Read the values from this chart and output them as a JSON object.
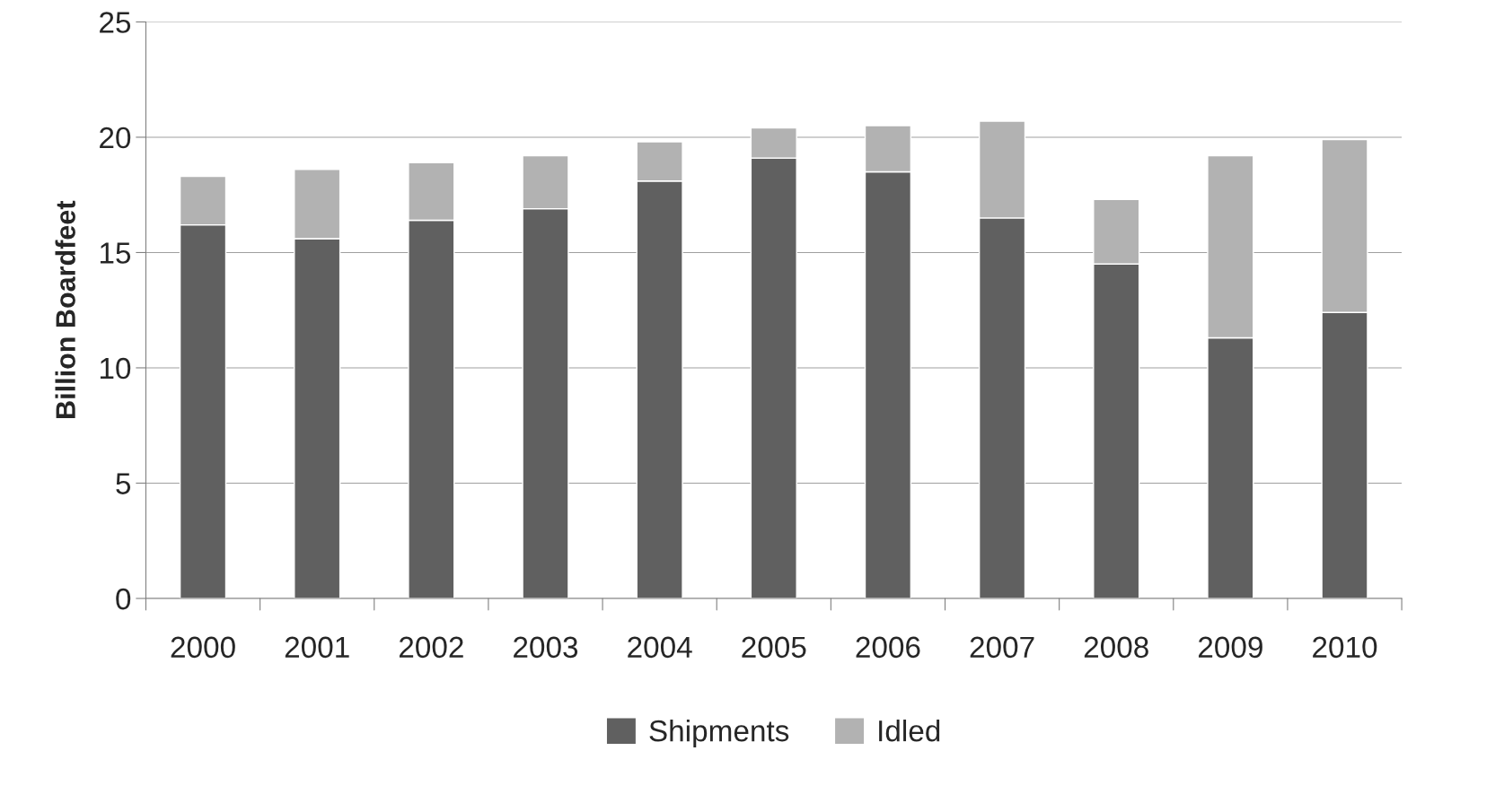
{
  "chart_data": {
    "type": "bar",
    "stacked": true,
    "ylabel": "Billion Boardfeet",
    "categories": [
      "2000",
      "2001",
      "2002",
      "2003",
      "2004",
      "2005",
      "2006",
      "2007",
      "2008",
      "2009",
      "2010"
    ],
    "series": [
      {
        "name": "Shipments",
        "color": "#606060",
        "values": [
          16.2,
          15.6,
          16.4,
          16.9,
          18.1,
          19.1,
          18.5,
          16.5,
          14.5,
          11.3,
          12.4
        ]
      },
      {
        "name": "Idled",
        "color": "#b2b2b2",
        "values": [
          2.1,
          3.0,
          2.5,
          2.3,
          1.7,
          1.3,
          2.0,
          4.2,
          2.8,
          7.9,
          7.5
        ]
      }
    ],
    "ylim": [
      0,
      25
    ],
    "yticks": [
      0,
      5,
      10,
      15,
      20,
      25
    ],
    "grid": "y",
    "legend": "bottom"
  }
}
